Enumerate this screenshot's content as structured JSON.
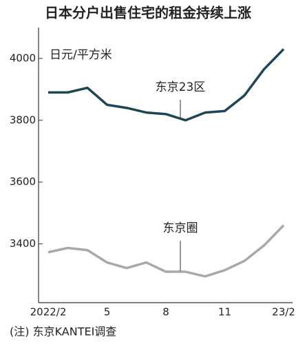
{
  "chart_data": {
    "type": "line",
    "title": "日本分户出售住宅的租金持续上涨",
    "y_label": "日元/平方米",
    "note": "(注) 东京KANTEI调查",
    "categories": [
      "2022/2",
      null,
      null,
      "5",
      null,
      null,
      "8",
      null,
      null,
      "11",
      null,
      null,
      "23/2"
    ],
    "series": [
      {
        "name": "东京23区",
        "color": "#1e4555",
        "values": [
          3890,
          3890,
          3905,
          3850,
          3840,
          3825,
          3820,
          3800,
          3825,
          3830,
          3880,
          3965,
          4030
        ]
      },
      {
        "name": "东京圈",
        "color": "#a8a8a8",
        "values": [
          3373,
          3387,
          3380,
          3340,
          3322,
          3340,
          3310,
          3310,
          3295,
          3315,
          3345,
          3395,
          3460
        ]
      }
    ],
    "ylim": [
      3210,
      4100
    ],
    "yticks": [
      3400,
      3600,
      3800,
      4000
    ]
  }
}
